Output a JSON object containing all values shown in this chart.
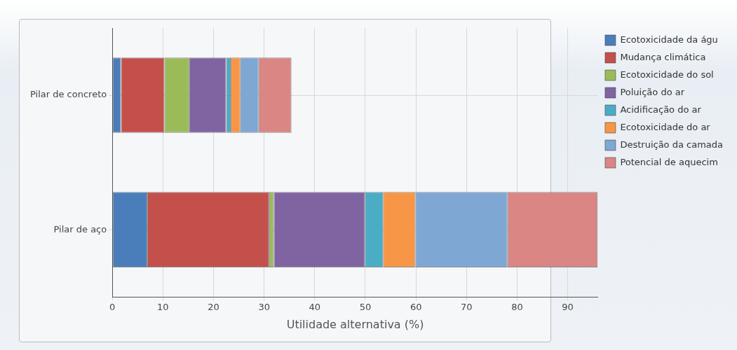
{
  "chart_data": {
    "type": "bar",
    "orientation": "horizontal",
    "stacked": true,
    "xlabel": "Utilidade alternativa (%)",
    "categories": [
      "Pilar de concreto",
      "Pilar de aço"
    ],
    "series": [
      {
        "name": "Ecotoxicidade da águ",
        "color": "#4a7ebb",
        "values": [
          1.7,
          6.9
        ]
      },
      {
        "name": "Mudança climática",
        "color": "#c4504c",
        "values": [
          8.6,
          24.1
        ]
      },
      {
        "name": "Ecotoxicidade do sol",
        "color": "#9bbb59",
        "values": [
          4.9,
          0.9
        ]
      },
      {
        "name": "Poluição do ar",
        "color": "#8064a2",
        "values": [
          7.3,
          18.0
        ]
      },
      {
        "name": "Acidificação do ar",
        "color": "#4bacc6",
        "values": [
          0.9,
          3.6
        ]
      },
      {
        "name": "Ecotoxicidade do ar",
        "color": "#f79646",
        "values": [
          1.9,
          6.4
        ]
      },
      {
        "name": "Destruição da camada",
        "color": "#7fa7d4",
        "values": [
          3.6,
          18.2
        ]
      },
      {
        "name": "Potencial de aquecim",
        "color": "#d98684",
        "values": [
          6.5,
          17.8
        ]
      }
    ],
    "xlim": [
      0,
      96
    ],
    "xticks": [
      0,
      10,
      20,
      30,
      40,
      50,
      60,
      70,
      80,
      90
    ],
    "grid": true,
    "legend": "right"
  }
}
